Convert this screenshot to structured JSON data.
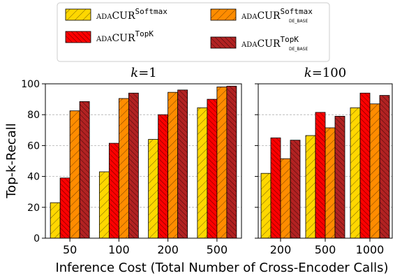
{
  "chart_data": {
    "type": "bar",
    "ylabel": "Top-k-Recall",
    "xlabel": "Inference Cost (Total Number of Cross-Encoder Calls)",
    "ylim": [
      0,
      100
    ],
    "yticks": [
      0,
      20,
      40,
      60,
      80,
      100
    ],
    "legend": {
      "placement": "top-center",
      "entries": [
        {
          "prefix": "ADA",
          "main": "CUR",
          "sup": "Softmax",
          "sub": "",
          "color": "#ffd700",
          "hatch": "light"
        },
        {
          "prefix": "ADA",
          "main": "CUR",
          "sup": "TopK",
          "sub": "",
          "color": "#ff0000",
          "hatch": "dense"
        },
        {
          "prefix": "ADA",
          "main": "CUR",
          "sup": "Softmax",
          "sub": "DE_BASE",
          "color": "#ff8c00",
          "hatch": "light"
        },
        {
          "prefix": "ADA",
          "main": "CUR",
          "sup": "TopK",
          "sub": "DE_BASE",
          "color": "#b22222",
          "hatch": "dense"
        }
      ]
    },
    "panels": [
      {
        "title_var": "k",
        "title_eq": "=1",
        "categories": [
          "50",
          "100",
          "200",
          "500"
        ],
        "series": [
          {
            "values": [
              23,
              43,
              64,
              84.5
            ]
          },
          {
            "values": [
              39,
              61.5,
              80,
              90
            ]
          },
          {
            "values": [
              82.5,
              90.5,
              94.5,
              98
            ]
          },
          {
            "values": [
              88.5,
              94,
              96,
              98.5
            ]
          }
        ]
      },
      {
        "title_var": "k",
        "title_eq": "=100",
        "categories": [
          "200",
          "500",
          "1000"
        ],
        "series": [
          {
            "values": [
              42,
              66.5,
              84.5
            ]
          },
          {
            "values": [
              65,
              81.5,
              94
            ]
          },
          {
            "values": [
              51.5,
              71.5,
              87
            ]
          },
          {
            "values": [
              63.5,
              79,
              92.5
            ]
          }
        ]
      }
    ]
  }
}
